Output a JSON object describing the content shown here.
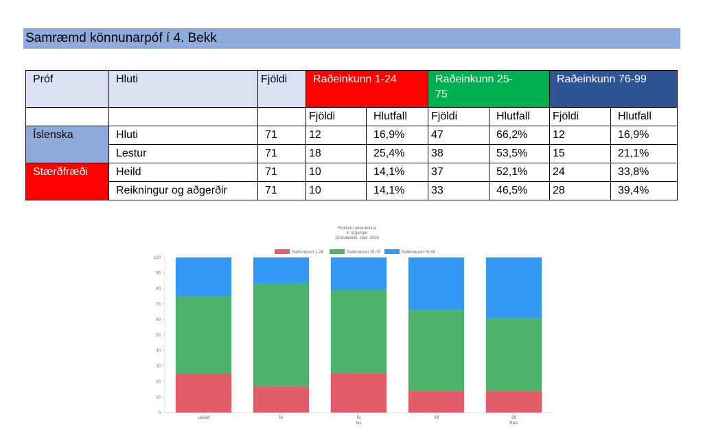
{
  "page_title": "Samræmd könnunarpóf í 4. Bekk",
  "table": {
    "headers": {
      "prof": "Próf",
      "hluti": "Hluti",
      "fjoldi": "Fjöldi",
      "band1": "Raðeinkunn 1-24",
      "band2_line1": "Raðeinkunn 25-",
      "band2_line2": "75",
      "band3": "Raðeinkunn 76-99"
    },
    "subheaders": {
      "b1_count": "Fjöldi",
      "b1_pct": "Hlutfall",
      "b2_count": "Fjöldi",
      "b2_pct": "Hlutfall",
      "b3_count": "Fjöldi",
      "b3_pct": "Hlutfall"
    },
    "rows": [
      {
        "subject": "Íslenska",
        "part": "Hluti",
        "n": "71",
        "b1n": "12",
        "b1p": "16,9%",
        "b2n": "47",
        "b2p": "66,2%",
        "b3n": "12",
        "b3p": "16,9%"
      },
      {
        "subject": "",
        "part": "Lestur",
        "n": "71",
        "b1n": "18",
        "b1p": "25,4%",
        "b2n": "38",
        "b2p": "53,5%",
        "b3n": "15",
        "b3p": "21,1%"
      },
      {
        "subject": "Stærðfræði",
        "part": "Heild",
        "n": "71",
        "b1n": "10",
        "b1p": "14,1%",
        "b2n": "37",
        "b2p": "52,1%",
        "b3n": "24",
        "b3p": "33,8%"
      },
      {
        "subject": "",
        "part": "Reikningur og aðgerðir",
        "n": "71",
        "b1n": "10",
        "b1p": "14,1%",
        "b2n": "33",
        "b2p": "46,5%",
        "b3n": "28",
        "b3p": "39,4%"
      }
    ]
  },
  "chart_data": {
    "type": "bar",
    "stacked": true,
    "title_lines": [
      "Flokkun raðeinkunna",
      "4. árgangur",
      "Grundaskóli, sept. 2019"
    ],
    "categories": [
      [
        "Landið"
      ],
      [
        "Ísl"
      ],
      [
        "Ísl",
        "les"
      ],
      [
        "Stf"
      ],
      [
        "Stf",
        "R&A"
      ]
    ],
    "series": [
      {
        "name": "Raðeinkunn 1-24",
        "color": "#e35d6a",
        "values": [
          25,
          17,
          25.5,
          14,
          14
        ]
      },
      {
        "name": "Raðeinkunn 25-75",
        "color": "#4cb36b",
        "values": [
          50,
          66,
          53.5,
          52,
          47
        ]
      },
      {
        "name": "Raðeinkunn 76-99",
        "color": "#3399f3",
        "values": [
          25,
          17,
          21,
          34,
          39
        ]
      }
    ],
    "ylim": [
      0,
      100
    ],
    "yticks": [
      "0",
      "10",
      "20",
      "30",
      "40",
      "50",
      "60",
      "70",
      "80",
      "90",
      "100"
    ],
    "legend_position": "top",
    "grid": false
  }
}
